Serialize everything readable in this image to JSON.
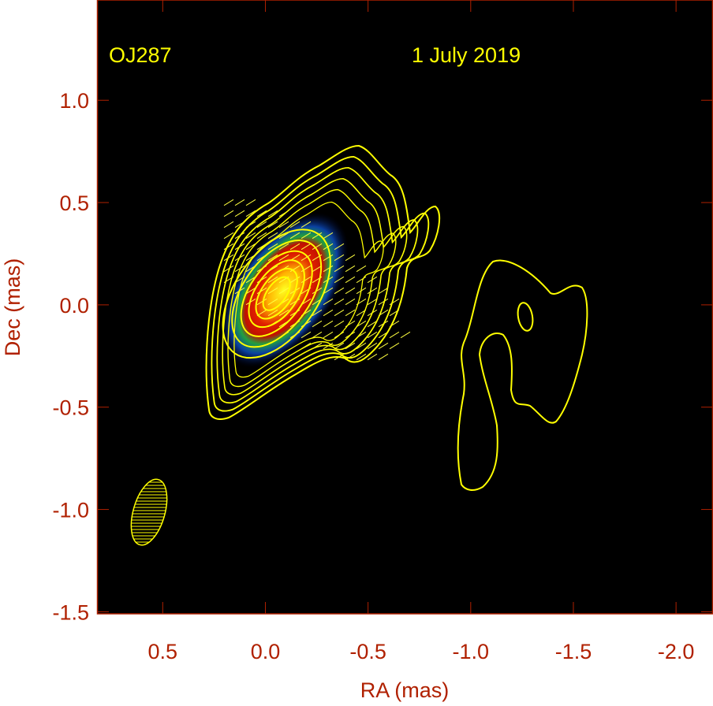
{
  "chart_data": {
    "type": "heatmap",
    "subtype": "radio intensity map with contours and polarization vectors",
    "xlabel": "RA (mas)",
    "ylabel": "Dec (mas)",
    "xlim": [
      0.82,
      -2.18
    ],
    "ylim": [
      -1.51,
      1.49
    ],
    "x_ticks": [
      0.5,
      0.0,
      -0.5,
      -1.0,
      -1.5,
      -2.0
    ],
    "x_tick_labels": [
      "0.5",
      "0.0",
      "-0.5",
      "-1.0",
      "-1.5",
      "-2.0"
    ],
    "y_ticks": [
      1.0,
      0.5,
      0.0,
      -0.5,
      -1.0,
      -1.5
    ],
    "y_tick_labels": [
      "1.0",
      "0.5",
      "0.0",
      "-0.5",
      "-1.0",
      "-1.5"
    ],
    "annotations": {
      "source": "OJ287",
      "date": "1 July 2019"
    },
    "core_peak": {
      "ra": -0.07,
      "dec": 0.07
    },
    "beam": {
      "ra": 0.45,
      "dec": -1.0
    },
    "grid": false,
    "legend": "none",
    "colors": {
      "axis": "#b02000",
      "annotation": "#ffff00",
      "contour": "#ffff00",
      "background": "#000000"
    }
  }
}
